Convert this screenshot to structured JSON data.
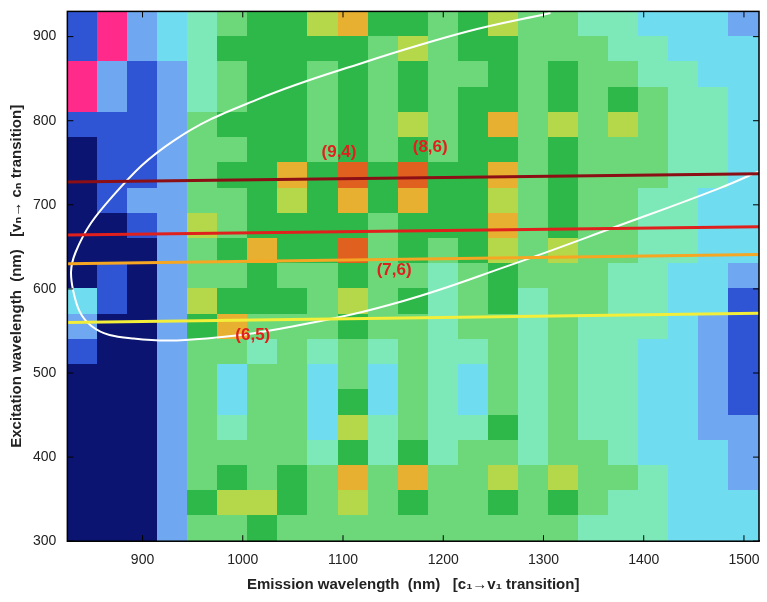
{
  "chart_data": {
    "type": "heatmap",
    "x_label": "Emission wavelength  (nm)   [c₁→v₁ transition]",
    "y_label": "Excitation wavelength  (nm)   [vₙ→ cₙ transition]",
    "xlim": [
      825,
      1515
    ],
    "ylim": [
      300,
      930
    ],
    "xticks": [
      900,
      1000,
      1100,
      1200,
      1300,
      1400,
      1500
    ],
    "yticks": [
      300,
      400,
      500,
      600,
      700,
      800,
      900
    ],
    "grid": false,
    "cells": {
      "x": [
        840,
        870,
        900,
        930,
        960,
        990,
        1020,
        1050,
        1080,
        1110,
        1140,
        1170,
        1200,
        1230,
        1260,
        1290,
        1320,
        1350,
        1380,
        1410,
        1440,
        1470,
        1500
      ],
      "y": [
        915,
        885,
        855,
        825,
        795,
        765,
        735,
        705,
        675,
        645,
        615,
        585,
        555,
        525,
        495,
        465,
        435,
        405,
        375,
        345,
        315
      ],
      "z": [
        [
          1,
          10,
          2,
          3,
          4,
          5,
          6,
          6,
          7,
          8,
          6,
          6,
          5,
          6,
          7,
          5,
          5,
          4,
          4,
          3,
          3,
          3,
          2
        ],
        [
          1,
          10,
          2,
          3,
          4,
          6,
          6,
          6,
          6,
          6,
          5,
          7,
          5,
          6,
          6,
          5,
          5,
          5,
          4,
          4,
          3,
          3,
          3
        ],
        [
          10,
          2,
          1,
          2,
          4,
          5,
          6,
          6,
          5,
          6,
          5,
          6,
          5,
          5,
          6,
          5,
          6,
          5,
          5,
          4,
          4,
          3,
          3
        ],
        [
          10,
          2,
          1,
          2,
          4,
          5,
          6,
          6,
          5,
          6,
          5,
          6,
          5,
          6,
          6,
          5,
          6,
          5,
          6,
          5,
          4,
          4,
          3
        ],
        [
          1,
          1,
          1,
          2,
          5,
          6,
          6,
          6,
          5,
          6,
          5,
          7,
          5,
          6,
          8,
          5,
          7,
          5,
          7,
          5,
          4,
          4,
          3
        ],
        [
          0,
          1,
          1,
          2,
          5,
          5,
          6,
          6,
          5,
          6,
          5,
          6,
          5,
          6,
          6,
          5,
          6,
          5,
          5,
          5,
          4,
          4,
          3
        ],
        [
          0,
          1,
          1,
          2,
          5,
          6,
          6,
          8,
          6,
          9,
          6,
          9,
          6,
          6,
          8,
          5,
          6,
          5,
          5,
          5,
          4,
          4,
          3
        ],
        [
          0,
          1,
          2,
          2,
          5,
          5,
          6,
          7,
          6,
          8,
          6,
          8,
          6,
          6,
          7,
          5,
          6,
          5,
          5,
          4,
          4,
          3,
          3
        ],
        [
          0,
          0,
          1,
          2,
          7,
          5,
          6,
          6,
          6,
          6,
          5,
          6,
          6,
          6,
          8,
          5,
          6,
          5,
          5,
          4,
          4,
          3,
          3
        ],
        [
          0,
          0,
          0,
          2,
          5,
          6,
          8,
          6,
          6,
          9,
          5,
          6,
          5,
          6,
          7,
          5,
          7,
          5,
          5,
          4,
          4,
          3,
          3
        ],
        [
          0,
          1,
          0,
          2,
          5,
          5,
          6,
          5,
          5,
          6,
          5,
          5,
          4,
          5,
          6,
          5,
          5,
          5,
          4,
          4,
          3,
          3,
          2
        ],
        [
          3,
          1,
          0,
          2,
          7,
          6,
          6,
          6,
          5,
          7,
          5,
          6,
          4,
          5,
          6,
          4,
          5,
          5,
          4,
          4,
          3,
          3,
          1
        ],
        [
          2,
          0,
          0,
          2,
          6,
          8,
          5,
          5,
          5,
          6,
          5,
          5,
          4,
          5,
          5,
          4,
          5,
          4,
          4,
          4,
          3,
          2,
          1
        ],
        [
          1,
          0,
          0,
          2,
          5,
          5,
          4,
          5,
          4,
          5,
          4,
          5,
          4,
          4,
          5,
          4,
          5,
          4,
          4,
          3,
          3,
          2,
          1
        ],
        [
          0,
          0,
          0,
          2,
          5,
          3,
          5,
          5,
          3,
          5,
          3,
          5,
          4,
          3,
          5,
          4,
          5,
          4,
          4,
          3,
          3,
          2,
          1
        ],
        [
          0,
          0,
          0,
          2,
          5,
          3,
          5,
          5,
          3,
          6,
          3,
          5,
          4,
          3,
          5,
          4,
          5,
          4,
          4,
          3,
          3,
          2,
          1
        ],
        [
          0,
          0,
          0,
          2,
          5,
          4,
          5,
          5,
          3,
          7,
          4,
          5,
          4,
          4,
          6,
          4,
          5,
          4,
          4,
          3,
          3,
          2,
          2
        ],
        [
          0,
          0,
          0,
          2,
          5,
          5,
          5,
          5,
          4,
          6,
          4,
          6,
          4,
          5,
          5,
          4,
          5,
          5,
          4,
          3,
          3,
          3,
          2
        ],
        [
          0,
          0,
          0,
          2,
          5,
          6,
          5,
          6,
          5,
          8,
          5,
          8,
          5,
          5,
          7,
          5,
          7,
          5,
          5,
          4,
          3,
          3,
          2
        ],
        [
          0,
          0,
          0,
          2,
          6,
          7,
          7,
          6,
          5,
          7,
          5,
          6,
          5,
          5,
          6,
          5,
          6,
          5,
          4,
          4,
          3,
          3,
          3
        ],
        [
          0,
          0,
          0,
          2,
          5,
          5,
          6,
          5,
          5,
          5,
          5,
          5,
          5,
          5,
          5,
          5,
          5,
          4,
          4,
          4,
          3,
          3,
          3
        ]
      ]
    },
    "series": [
      {
        "type": "line",
        "color": "#8b0f14",
        "line_style": "solid",
        "x": [
          825,
          1515
        ],
        "y": [
          727,
          737
        ]
      },
      {
        "type": "line",
        "color": "#e0201c",
        "line_style": "solid",
        "x": [
          825,
          1515
        ],
        "y": [
          664,
          674
        ]
      },
      {
        "type": "line",
        "color": "#f5a623",
        "line_style": "solid",
        "x": [
          825,
          1515
        ],
        "y": [
          630,
          641
        ]
      },
      {
        "type": "line",
        "color": "#f2ee3a",
        "line_style": "solid",
        "x": [
          825,
          1515
        ],
        "y": [
          560,
          571
        ]
      },
      {
        "type": "line",
        "color": "#ffffff",
        "line_style": "solid",
        "x": [
          1307,
          1224,
          1120,
          1016,
          932,
          870,
          833,
          831,
          849,
          891,
          964,
          1057,
          1161,
          1266,
          1370,
          1474,
          1521
        ],
        "y": [
          928,
          906,
          869,
          826,
          777,
          710,
          643,
          597,
          556,
          541,
          541,
          557,
          586,
          628,
          673,
          719,
          743
        ]
      }
    ],
    "annotations": [
      {
        "text": "(9,4)",
        "x": 1096,
        "y": 763,
        "color": "#e0201c"
      },
      {
        "text": "(8,6)",
        "x": 1187,
        "y": 768,
        "color": "#e0201c"
      },
      {
        "text": "(7,6)",
        "x": 1151,
        "y": 622,
        "color": "#e0201c"
      },
      {
        "text": "(6,5)",
        "x": 1010,
        "y": 545,
        "color": "#e0201c"
      }
    ]
  }
}
